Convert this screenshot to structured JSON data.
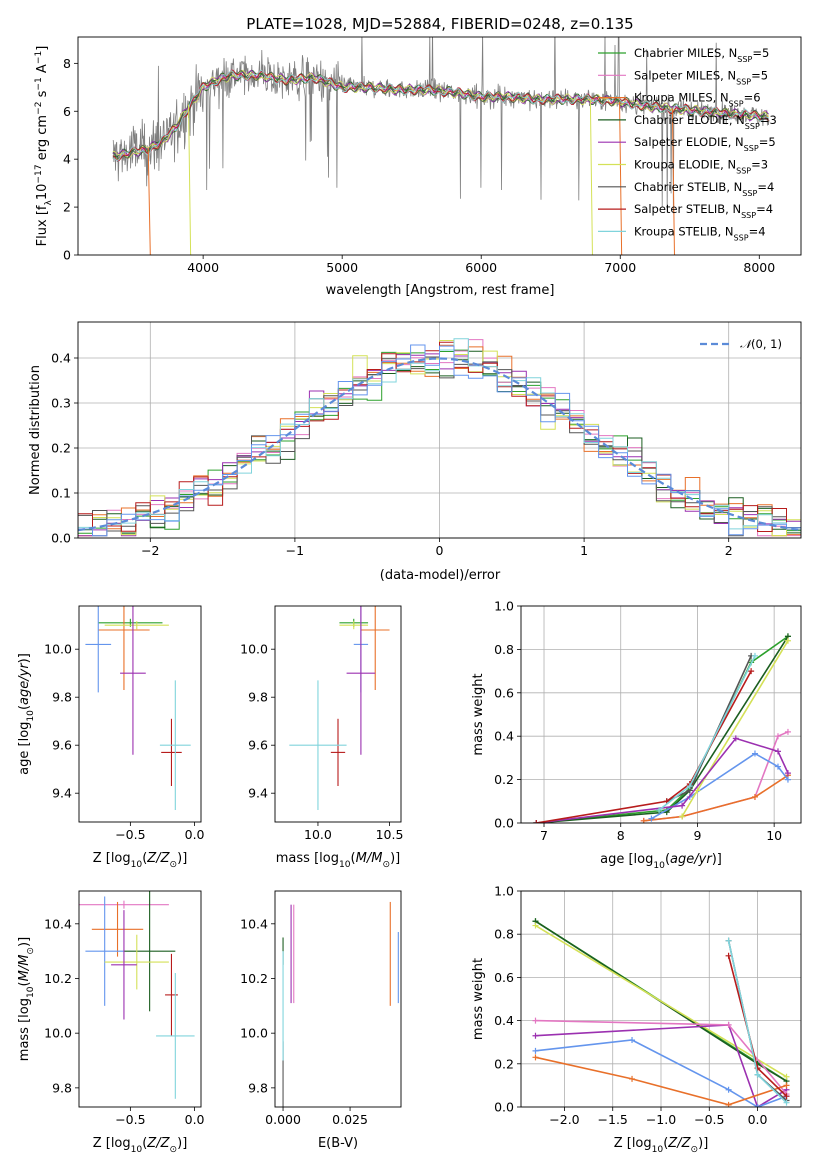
{
  "chart_data": [
    {
      "type": "line",
      "title": "PLATE=1028, MJD=52884, FIBERID=0248, z=0.135",
      "xlabel": "wavelength [Angstrom, rest frame]",
      "ylabel": "Flux [f_λ 10^-17 erg cm^-2 s^-1 A^-1]",
      "xlim": [
        3100,
        8300
      ],
      "ylim": [
        0,
        9.1
      ],
      "xticks": [
        4000,
        5000,
        6000,
        7000,
        8000
      ],
      "yticks": [
        0,
        2,
        4,
        6,
        8
      ],
      "legend_position": "top-right",
      "series": [
        {
          "name": "Chabrier MILES, N_SSP=5",
          "color": "#2ca02c"
        },
        {
          "name": "Salpeter MILES, N_SSP=5",
          "color": "#e377c2"
        },
        {
          "name": "Kroupa MILES, N_SSP=6",
          "color": "#e8702a"
        },
        {
          "name": "Chabrier ELODIE, N_SSP=3",
          "color": "#1b5e20"
        },
        {
          "name": "Salpeter ELODIE, N_SSP=5",
          "color": "#9b30b0"
        },
        {
          "name": "Kroupa ELODIE, N_SSP=3",
          "color": "#d4e157"
        },
        {
          "name": "Chabrier STELIB, N_SSP=4",
          "color": "#555555"
        },
        {
          "name": "Salpeter STELIB, N_SSP=4",
          "color": "#b71c1c"
        },
        {
          "name": "Kroupa STELIB, N_SSP=4",
          "color": "#80d4dc"
        }
      ],
      "continuum": {
        "x": [
          3350,
          3500,
          3600,
          3700,
          3800,
          3900,
          4000,
          4100,
          4200,
          4400,
          4600,
          4800,
          5000,
          5200,
          5400,
          5600,
          5800,
          6000,
          6200,
          6400,
          6600,
          6800,
          7000,
          7200,
          7400,
          7600,
          7800,
          8000,
          8070
        ],
        "y": [
          4.1,
          4.3,
          4.4,
          4.7,
          5.3,
          6.2,
          7.0,
          7.3,
          7.5,
          7.5,
          7.3,
          7.4,
          7.0,
          7.0,
          6.9,
          6.9,
          6.8,
          6.6,
          6.6,
          6.5,
          6.5,
          6.5,
          6.4,
          6.2,
          6.1,
          6.0,
          5.9,
          5.8,
          5.8
        ]
      }
    },
    {
      "type": "bar",
      "xlabel": "(data-model)/error",
      "ylabel": "Normed distribution",
      "xlim": [
        -2.5,
        2.5
      ],
      "ylim": [
        0,
        0.48
      ],
      "xticks": [
        -2,
        -1,
        0,
        1,
        2
      ],
      "yticks": [
        0.0,
        0.1,
        0.2,
        0.3,
        0.4
      ],
      "legend": "N(0,1)",
      "legend_position": "top-right",
      "grid": true
    },
    {
      "type": "scatter",
      "xlabel": "Z [log10(Z/Z☉)]",
      "ylabel": "age [log10(age/yr)]",
      "xlim": [
        -0.9,
        0.05
      ],
      "ylim": [
        9.28,
        10.18
      ],
      "xticks": [
        -0.5,
        0.0
      ],
      "yticks": [
        9.4,
        9.6,
        9.8,
        10.0
      ],
      "points": [
        {
          "x": -0.5,
          "y": 10.11,
          "xerr": 0.25,
          "yerr": 0.0,
          "color": "#2ca02c"
        },
        {
          "x": -0.55,
          "y": 10.08,
          "xerr": 0.2,
          "yerr": 0.25,
          "color": "#e8702a"
        },
        {
          "x": -0.75,
          "y": 10.02,
          "xerr": 0.1,
          "yerr": 0.2,
          "color": "#6495ed"
        },
        {
          "x": -0.45,
          "y": 10.1,
          "xerr": 0.25,
          "yerr": 0.0,
          "color": "#d4e157"
        },
        {
          "x": -0.48,
          "y": 9.9,
          "xerr": 0.1,
          "yerr": 0.34,
          "color": "#9b30b0"
        },
        {
          "x": -0.18,
          "y": 9.57,
          "xerr": 0.08,
          "yerr": 0.14,
          "color": "#b71c1c"
        },
        {
          "x": -0.15,
          "y": 9.6,
          "xerr": 0.12,
          "yerr": 0.27,
          "color": "#80d4dc"
        }
      ]
    },
    {
      "type": "scatter",
      "xlabel": "mass [log10(M/M☉)]",
      "ylabel": "",
      "xlim": [
        9.7,
        10.58
      ],
      "ylim": [
        9.28,
        10.18
      ],
      "xticks": [
        10.0,
        10.5
      ],
      "yticks": [
        9.4,
        9.6,
        9.8,
        10.0
      ],
      "points": [
        {
          "x": 10.25,
          "y": 10.11,
          "xerr": 0.1,
          "yerr": 0.0,
          "color": "#2ca02c"
        },
        {
          "x": 10.4,
          "y": 10.08,
          "xerr": 0.1,
          "yerr": 0.25,
          "color": "#e8702a"
        },
        {
          "x": 10.3,
          "y": 10.02,
          "xerr": 0.05,
          "yerr": 0.2,
          "color": "#6495ed"
        },
        {
          "x": 10.25,
          "y": 10.1,
          "xerr": 0.1,
          "yerr": 0.0,
          "color": "#d4e157"
        },
        {
          "x": 10.3,
          "y": 9.9,
          "xerr": 0.1,
          "yerr": 0.34,
          "color": "#9b30b0"
        },
        {
          "x": 10.14,
          "y": 9.57,
          "xerr": 0.05,
          "yerr": 0.14,
          "color": "#b71c1c"
        },
        {
          "x": 10.0,
          "y": 9.6,
          "xerr": 0.2,
          "yerr": 0.27,
          "color": "#80d4dc"
        }
      ]
    },
    {
      "type": "line",
      "xlabel": "age [log10(age/yr)]",
      "ylabel": "mass weight",
      "xlim": [
        6.7,
        10.35
      ],
      "ylim": [
        0,
        1.0
      ],
      "xticks": [
        7,
        8,
        9,
        10
      ],
      "yticks": [
        0.0,
        0.2,
        0.4,
        0.6,
        0.8,
        1.0
      ],
      "grid": true,
      "series": [
        {
          "color": "#2ca02c",
          "x": [
            6.9,
            8.6,
            8.9,
            9.7,
            10.18
          ],
          "y": [
            0.0,
            0.06,
            0.16,
            0.74,
            0.86
          ]
        },
        {
          "color": "#1b5e20",
          "x": [
            6.9,
            8.6,
            8.9,
            10.18
          ],
          "y": [
            0.0,
            0.05,
            0.15,
            0.86
          ]
        },
        {
          "color": "#e377c2",
          "x": [
            8.3,
            8.8,
            9.75,
            10.05,
            10.18
          ],
          "y": [
            0.01,
            0.03,
            0.12,
            0.4,
            0.42
          ]
        },
        {
          "color": "#e8702a",
          "x": [
            8.3,
            8.8,
            9.75,
            10.18
          ],
          "y": [
            0.01,
            0.03,
            0.12,
            0.22
          ]
        },
        {
          "color": "#6495ed",
          "x": [
            8.4,
            8.9,
            9.75,
            10.05,
            10.18
          ],
          "y": [
            0.02,
            0.12,
            0.32,
            0.26,
            0.2
          ]
        },
        {
          "color": "#d4e157",
          "x": [
            8.8,
            9.0,
            10.18
          ],
          "y": [
            0.03,
            0.15,
            0.84
          ]
        },
        {
          "color": "#9b30b0",
          "x": [
            6.9,
            8.8,
            9.5,
            10.05,
            10.18
          ],
          "y": [
            0.0,
            0.08,
            0.39,
            0.33,
            0.23
          ]
        },
        {
          "color": "#555555",
          "x": [
            8.6,
            8.9,
            9.7
          ],
          "y": [
            0.1,
            0.15,
            0.77
          ]
        },
        {
          "color": "#b71c1c",
          "x": [
            6.9,
            8.6,
            8.9,
            9.7
          ],
          "y": [
            0.0,
            0.1,
            0.18,
            0.7
          ]
        },
        {
          "color": "#80d4dc",
          "x": [
            8.5,
            8.9,
            9.75
          ],
          "y": [
            0.06,
            0.17,
            0.77
          ]
        }
      ]
    },
    {
      "type": "scatter",
      "xlabel": "Z [log10(Z/Z☉)]",
      "ylabel": "mass [log10(M/M☉)]",
      "xlim": [
        -0.9,
        0.05
      ],
      "ylim": [
        9.73,
        10.52
      ],
      "xticks": [
        -0.5,
        0.0
      ],
      "yticks": [
        9.8,
        10.0,
        10.2,
        10.4
      ],
      "points": [
        {
          "x": -0.55,
          "y": 10.47,
          "xerr": 0.35,
          "yerr": 0.0,
          "color": "#e377c2"
        },
        {
          "x": -0.6,
          "y": 10.38,
          "xerr": 0.2,
          "yerr": 0.1,
          "color": "#e8702a"
        },
        {
          "x": -0.7,
          "y": 10.3,
          "xerr": 0.15,
          "yerr": 0.2,
          "color": "#6495ed"
        },
        {
          "x": -0.35,
          "y": 10.3,
          "xerr": 0.2,
          "yerr": 0.22,
          "color": "#1b5e20"
        },
        {
          "x": -0.45,
          "y": 10.26,
          "xerr": 0.25,
          "yerr": 0.1,
          "color": "#d4e157"
        },
        {
          "x": -0.55,
          "y": 10.25,
          "xerr": 0.1,
          "yerr": 0.2,
          "color": "#9b30b0"
        },
        {
          "x": -0.18,
          "y": 10.14,
          "xerr": 0.05,
          "yerr": 0.15,
          "color": "#b71c1c"
        },
        {
          "x": -0.15,
          "y": 9.99,
          "xerr": 0.15,
          "yerr": 0.23,
          "color": "#80d4dc"
        }
      ]
    },
    {
      "type": "scatter",
      "xlabel": "E(B-V)",
      "ylabel": "",
      "xlim": [
        -0.003,
        0.044
      ],
      "ylim": [
        9.73,
        10.52
      ],
      "xticks": [
        0.0,
        0.025
      ],
      "tick_labels": [
        "0.000",
        "0.025"
      ],
      "yticks": [
        9.8,
        10.0,
        10.2,
        10.4
      ],
      "points": [
        {
          "x": 0.0,
          "y": 10.3,
          "yerr": 0.05,
          "color": "#1b5e20"
        },
        {
          "x": 0.0,
          "y": 9.85,
          "yerr": 0.12,
          "color": "#555555"
        },
        {
          "x": 0.0,
          "y": 10.1,
          "yerr": 0.2,
          "color": "#80d4dc"
        },
        {
          "x": 0.003,
          "y": 10.29,
          "yerr": 0.18,
          "color": "#9b30b0"
        },
        {
          "x": 0.004,
          "y": 10.29,
          "yerr": 0.18,
          "color": "#e377c2"
        },
        {
          "x": 0.04,
          "y": 10.29,
          "yerr": 0.19,
          "color": "#e8702a"
        },
        {
          "x": 0.043,
          "y": 10.24,
          "yerr": 0.13,
          "color": "#6495ed"
        }
      ]
    },
    {
      "type": "line",
      "xlabel": "Z [log10(Z/Z☉)]",
      "ylabel": "mass weight",
      "xlim": [
        -2.45,
        0.45
      ],
      "ylim": [
        0,
        1.0
      ],
      "xticks": [
        -2.0,
        -1.5,
        -1.0,
        -0.5,
        0.0
      ],
      "yticks": [
        0.0,
        0.2,
        0.4,
        0.6,
        0.8,
        1.0
      ],
      "grid": true,
      "series": [
        {
          "color": "#2ca02c",
          "x": [
            -2.3,
            0.3
          ],
          "y": [
            0.86,
            0.12
          ]
        },
        {
          "color": "#1b5e20",
          "x": [
            -2.3,
            0.0,
            0.3
          ],
          "y": [
            0.86,
            0.2,
            0.12
          ]
        },
        {
          "color": "#d4e157",
          "x": [
            -2.3,
            0.3
          ],
          "y": [
            0.84,
            0.14
          ]
        },
        {
          "color": "#9b30b0",
          "x": [
            -2.3,
            -0.3,
            0.0,
            0.3
          ],
          "y": [
            0.33,
            0.38,
            0.0,
            0.08
          ]
        },
        {
          "color": "#6495ed",
          "x": [
            -2.3,
            -1.3,
            -0.3,
            0.0,
            0.3
          ],
          "y": [
            0.26,
            0.31,
            0.08,
            0.0,
            0.05
          ]
        },
        {
          "color": "#e377c2",
          "x": [
            -2.3,
            -0.3,
            0.3
          ],
          "y": [
            0.4,
            0.38,
            0.06
          ]
        },
        {
          "color": "#e8702a",
          "x": [
            -2.3,
            -1.3,
            -0.3,
            0.3
          ],
          "y": [
            0.23,
            0.13,
            0.01,
            0.1
          ]
        },
        {
          "color": "#555555",
          "x": [
            -0.3,
            0.0,
            0.3
          ],
          "y": [
            0.77,
            0.15,
            0.03
          ]
        },
        {
          "color": "#b71c1c",
          "x": [
            -0.3,
            0.0,
            0.3
          ],
          "y": [
            0.7,
            0.18,
            0.05
          ]
        },
        {
          "color": "#80d4dc",
          "x": [
            -0.3,
            0.0,
            0.3
          ],
          "y": [
            0.77,
            0.15,
            0.02
          ]
        }
      ]
    }
  ]
}
